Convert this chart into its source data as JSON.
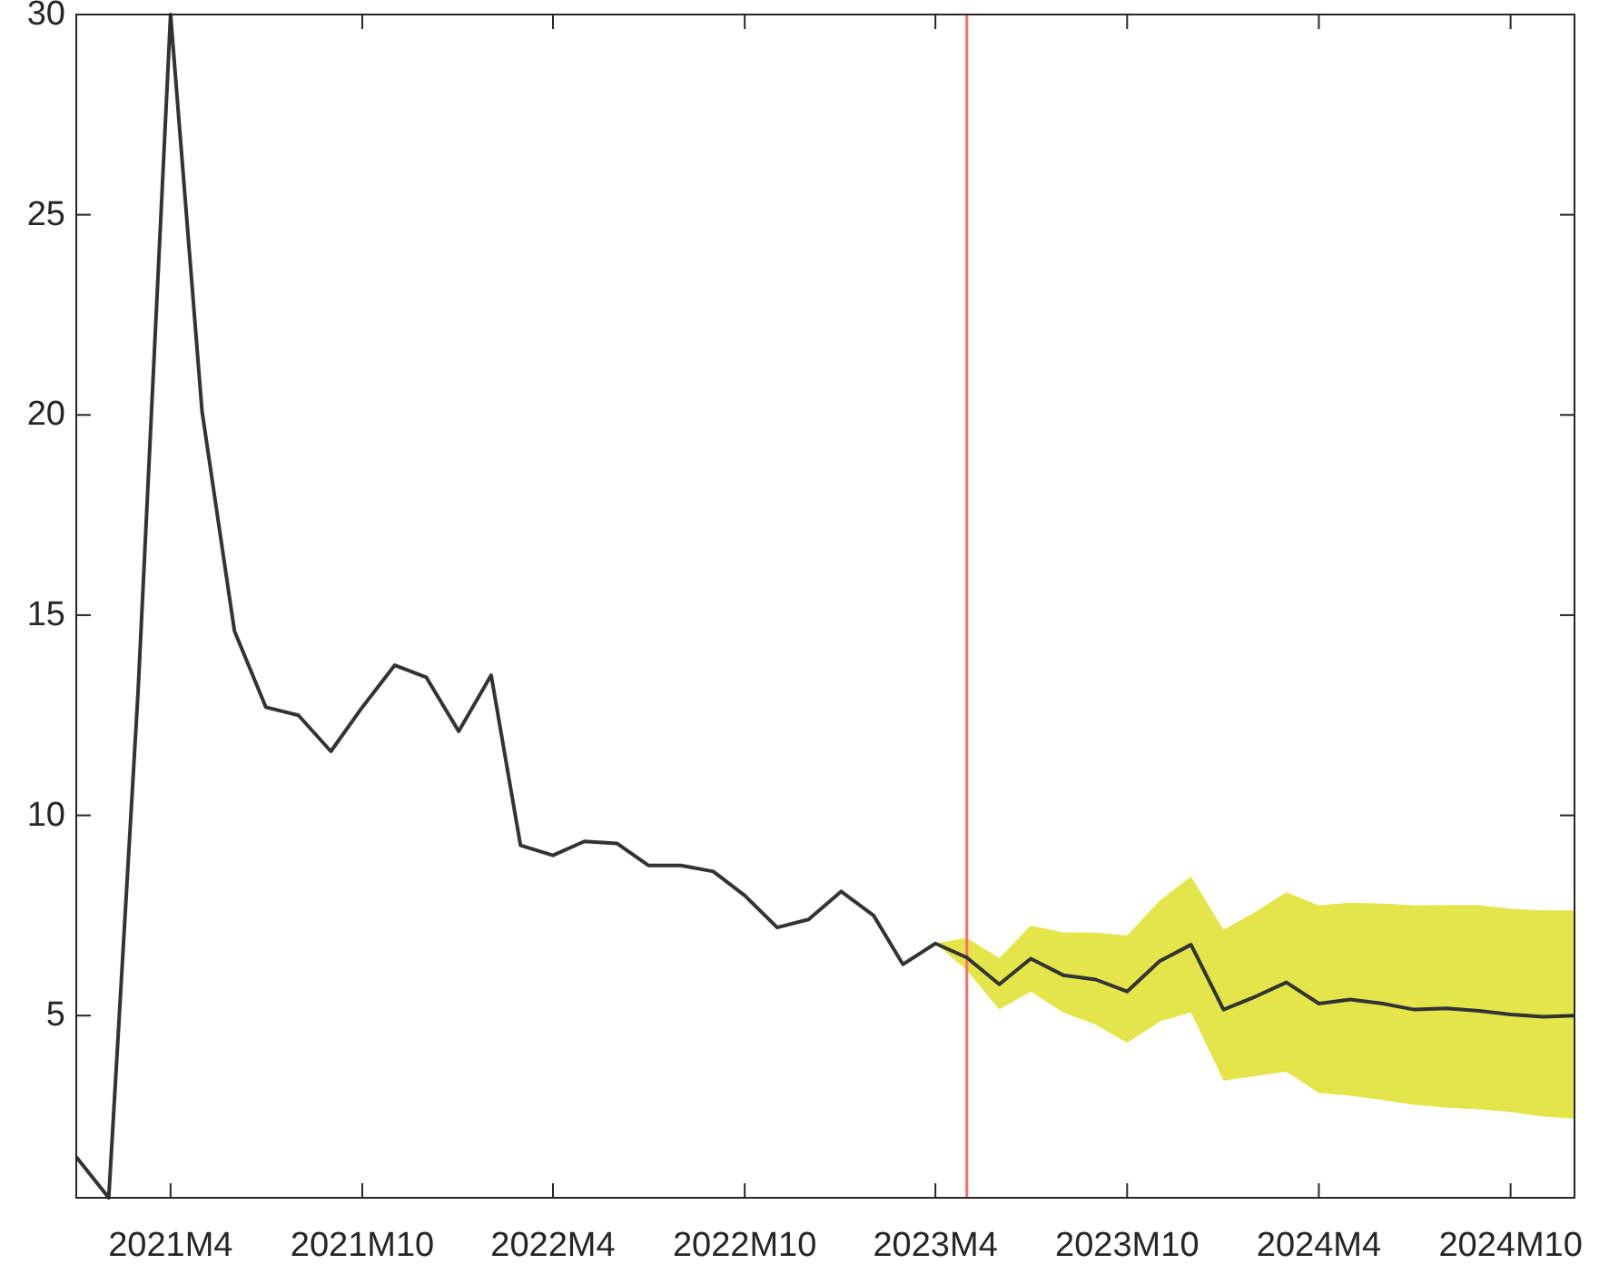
{
  "chart_data": {
    "type": "line",
    "x": [
      "2021-01",
      "2021-02",
      "2021-03",
      "2021-04",
      "2021-05",
      "2021-06",
      "2021-07",
      "2021-08",
      "2021-09",
      "2021-10",
      "2021-11",
      "2021-12",
      "2022-01",
      "2022-02",
      "2022-03",
      "2022-04",
      "2022-05",
      "2022-06",
      "2022-07",
      "2022-08",
      "2022-09",
      "2022-10",
      "2022-11",
      "2022-12",
      "2023-01",
      "2023-02",
      "2023-03",
      "2023-04",
      "2023-05",
      "2023-06",
      "2023-07",
      "2023-08",
      "2023-09",
      "2023-10",
      "2023-11",
      "2023-12",
      "2024-01",
      "2024-02",
      "2024-03",
      "2024-04",
      "2024-05",
      "2024-06",
      "2024-07",
      "2024-08",
      "2024-09",
      "2024-10",
      "2024-11",
      "2024-12"
    ],
    "series": [
      {
        "color": "#333333",
        "values": [
          1.47,
          0.45,
          13.1,
          30,
          20.1,
          14.6,
          12.7,
          12.5,
          11.6,
          12.7,
          13.75,
          13.45,
          12.1,
          13.5,
          9.25,
          9.0,
          9.35,
          9.3,
          8.75,
          8.75,
          8.6,
          8.0,
          7.2,
          7.4,
          8.1,
          7.5,
          6.28,
          6.8,
          6.45,
          5.78,
          6.42,
          6.01,
          5.9,
          5.6,
          6.36,
          6.77,
          5.15,
          5.48,
          5.83,
          5.3,
          5.4,
          5.3,
          5.15,
          5.18,
          5.12,
          5.03,
          4.97,
          5.0
        ],
        "lower": [
          null,
          null,
          null,
          null,
          null,
          null,
          null,
          null,
          null,
          null,
          null,
          null,
          null,
          null,
          null,
          null,
          null,
          null,
          null,
          null,
          null,
          null,
          null,
          null,
          null,
          null,
          null,
          6.8,
          6.13,
          5.15,
          5.6,
          5.08,
          4.77,
          4.32,
          4.85,
          5.08,
          3.38,
          3.49,
          3.6,
          3.07,
          3.0,
          2.89,
          2.77,
          2.7,
          2.66,
          2.59,
          2.48,
          2.43
        ],
        "upper": [
          null,
          null,
          null,
          null,
          null,
          null,
          null,
          null,
          null,
          null,
          null,
          null,
          null,
          null,
          null,
          null,
          null,
          null,
          null,
          null,
          null,
          null,
          null,
          null,
          null,
          null,
          null,
          6.8,
          6.94,
          6.43,
          7.25,
          7.08,
          7.07,
          7.0,
          7.87,
          8.47,
          7.14,
          7.6,
          8.08,
          7.75,
          7.82,
          7.8,
          7.75,
          7.76,
          7.76,
          7.67,
          7.63,
          7.63
        ]
      }
    ],
    "xlim": [
      "2021-01",
      "2024-12"
    ],
    "xticks": [
      {
        "value": "2021-04",
        "label": "2021M4"
      },
      {
        "value": "2021-10",
        "label": "2021M10"
      },
      {
        "value": "2022-04",
        "label": "2022M4"
      },
      {
        "value": "2022-10",
        "label": "2022M10"
      },
      {
        "value": "2023-04",
        "label": "2023M4"
      },
      {
        "value": "2023-10",
        "label": "2023M10"
      },
      {
        "value": "2024-04",
        "label": "2024M4"
      },
      {
        "value": "2024-10",
        "label": "2024M10"
      }
    ],
    "ylim": [
      0.45,
      30
    ],
    "yticks": [
      5,
      10,
      15,
      20,
      25,
      30
    ],
    "ref_lines": [
      {
        "axis": "x",
        "value": "2023-05",
        "color": "#ff6b6b"
      }
    ],
    "grid": false
  }
}
